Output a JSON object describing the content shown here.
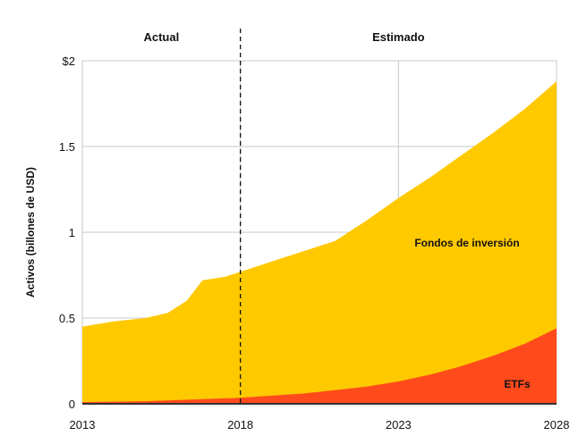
{
  "chart_data": {
    "type": "area",
    "stacked": true,
    "title": "",
    "xlabel": "",
    "ylabel": "Activos (billones de USD)",
    "xlim": [
      2013,
      2028
    ],
    "ylim": [
      0,
      2
    ],
    "grid": true,
    "x_ticks": [
      2013,
      2018,
      2023,
      2028
    ],
    "x_tick_labels": [
      "2013",
      "2018",
      "2023",
      "2028"
    ],
    "y_ticks": [
      0,
      0.5,
      1,
      1.5,
      2
    ],
    "y_tick_labels": [
      "0",
      "0.5",
      "1",
      "1.5",
      "$2"
    ],
    "divider_year": 2018,
    "region_labels": [
      "Actual",
      "Estimado"
    ],
    "series": [
      {
        "name": "ETFs",
        "color": "#ff4a1c",
        "x": [
          2013,
          2015,
          2018,
          2020,
          2022,
          2023,
          2024,
          2025,
          2026,
          2027,
          2028
        ],
        "values": [
          0.01,
          0.015,
          0.035,
          0.06,
          0.1,
          0.13,
          0.17,
          0.22,
          0.28,
          0.35,
          0.44
        ]
      },
      {
        "name": "Fondos de inversión",
        "color": "#ffc900",
        "x": [
          2013,
          2014,
          2015,
          2015.7,
          2016.3,
          2016.8,
          2017.5,
          2018,
          2019,
          2020,
          2021,
          2022,
          2023,
          2024,
          2025,
          2026,
          2027,
          2028
        ],
        "total": [
          0.45,
          0.48,
          0.5,
          0.53,
          0.6,
          0.72,
          0.74,
          0.77,
          0.83,
          0.89,
          0.95,
          1.07,
          1.2,
          1.32,
          1.45,
          1.58,
          1.72,
          1.88
        ]
      }
    ]
  }
}
